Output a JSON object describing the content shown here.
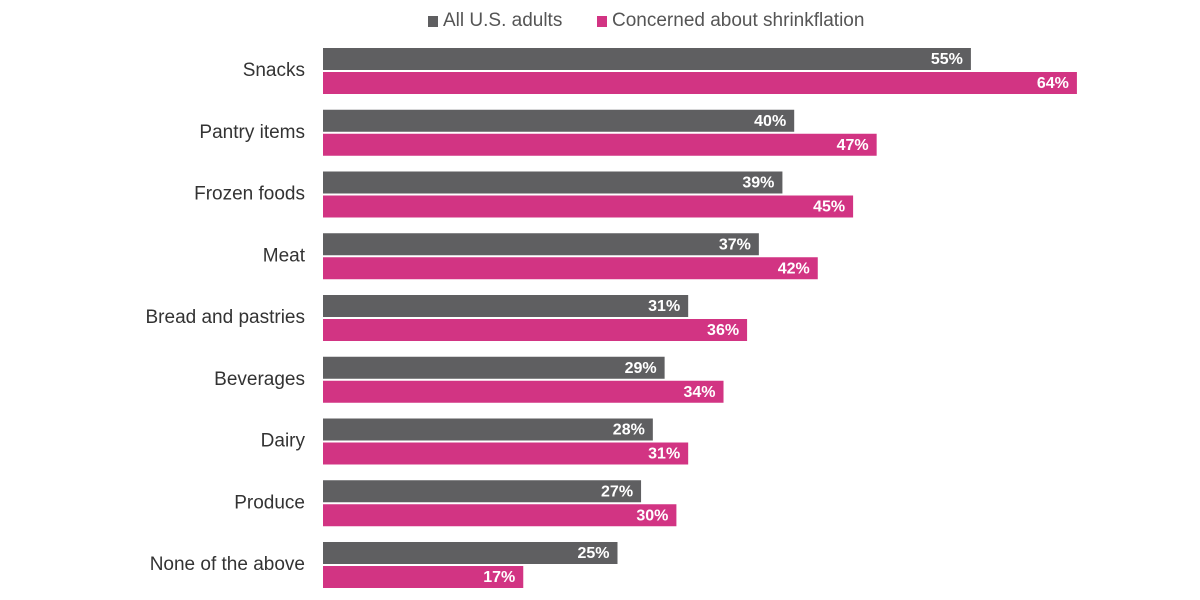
{
  "colors": {
    "all_adults": "#5f5f61",
    "concerned": "#d23483",
    "text": "#333333",
    "legend_text": "#555555"
  },
  "legend": [
    {
      "label": "All U.S. adults",
      "color": "#5f5f61"
    },
    {
      "label": "Concerned about shrinkflation",
      "color": "#d23483"
    }
  ],
  "chart_data": {
    "type": "bar",
    "orientation": "horizontal",
    "categories": [
      "Snacks",
      "Pantry items",
      "Frozen foods",
      "Meat",
      "Bread and pastries",
      "Beverages",
      "Dairy",
      "Produce",
      "None of the above"
    ],
    "series": [
      {
        "name": "All U.S. adults",
        "color": "#5f5f61",
        "values": [
          55,
          40,
          39,
          37,
          31,
          29,
          28,
          27,
          25
        ],
        "labels": [
          "55%",
          "40%",
          "39%",
          "37%",
          "31%",
          "29%",
          "28%",
          "27%",
          "25%"
        ]
      },
      {
        "name": "Concerned about shrinkflation",
        "color": "#d23483",
        "values": [
          64,
          47,
          45,
          42,
          36,
          34,
          31,
          30,
          17
        ],
        "labels": [
          "64%",
          "47%",
          "45%",
          "42%",
          "36%",
          "34%",
          "31%",
          "30%",
          "17%"
        ]
      }
    ],
    "xlim": [
      0,
      64
    ],
    "grid": false,
    "legend_position": "top"
  }
}
